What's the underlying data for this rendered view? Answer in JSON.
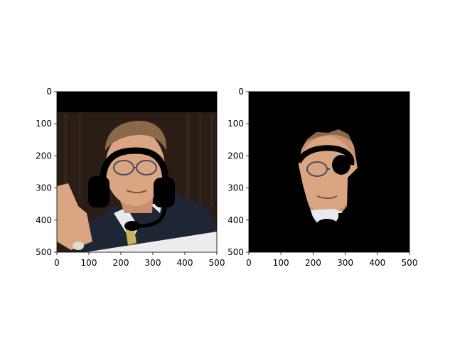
{
  "figure": {
    "background": "#ffffff",
    "panels": [
      {
        "name": "left-panel",
        "image_description_icon": "portrait-with-headset-icon",
        "x_ticks": [
          "0",
          "100",
          "200",
          "300",
          "400",
          "500"
        ],
        "y_ticks": [
          "0",
          "100",
          "200",
          "300",
          "400",
          "500"
        ],
        "xlim": [
          0,
          500
        ],
        "ylim": [
          500,
          0
        ]
      },
      {
        "name": "right-panel",
        "image_description_icon": "masked-face-with-headset-icon",
        "x_ticks": [
          "0",
          "100",
          "200",
          "300",
          "400",
          "500"
        ],
        "y_ticks": [
          "0",
          "100",
          "200",
          "300",
          "400",
          "500"
        ],
        "xlim": [
          0,
          500
        ],
        "ylim": [
          500,
          0
        ]
      }
    ],
    "colors": {
      "skin": "#d9a582",
      "suit": "#1e2633",
      "hair": "#8a6848",
      "background_dark": "#1a1411",
      "mask": "#000000",
      "headset": "#000000"
    }
  }
}
